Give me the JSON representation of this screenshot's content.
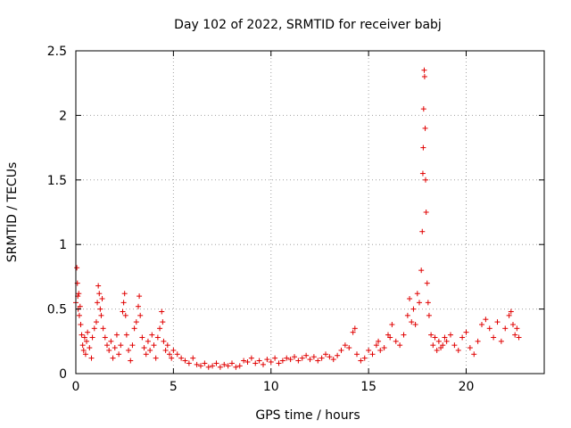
{
  "chart_data": {
    "type": "scatter",
    "title": "Day 102 of 2022, SRMTID for receiver babj",
    "xlabel": "GPS time / hours",
    "ylabel": "SRMTID / TECUs",
    "xlim": [
      0,
      24.0
    ],
    "ylim": [
      0,
      2.5
    ],
    "xticks": [
      0,
      5,
      10,
      15,
      20
    ],
    "xtick_labels": [
      "0",
      "5",
      "10",
      "15",
      "20"
    ],
    "yticks": [
      0,
      0.5,
      1,
      1.5,
      2,
      2.5
    ],
    "ytick_labels": [
      "0",
      "0.5",
      "1",
      "1.5",
      "2",
      "2.5"
    ],
    "grid": true,
    "marker": "plus",
    "series": [
      {
        "name": "SRMTID",
        "color": "#e00000",
        "points": [
          [
            0.0,
            0.55
          ],
          [
            0.05,
            0.82
          ],
          [
            0.08,
            0.7
          ],
          [
            0.1,
            0.6
          ],
          [
            0.12,
            0.5
          ],
          [
            0.15,
            0.62
          ],
          [
            0.18,
            0.45
          ],
          [
            0.22,
            0.52
          ],
          [
            0.25,
            0.38
          ],
          [
            0.3,
            0.3
          ],
          [
            0.35,
            0.22
          ],
          [
            0.4,
            0.18
          ],
          [
            0.45,
            0.28
          ],
          [
            0.5,
            0.15
          ],
          [
            0.55,
            0.25
          ],
          [
            0.6,
            0.32
          ],
          [
            0.7,
            0.2
          ],
          [
            0.8,
            0.12
          ],
          [
            0.85,
            0.28
          ],
          [
            0.95,
            0.35
          ],
          [
            1.05,
            0.4
          ],
          [
            1.1,
            0.55
          ],
          [
            1.15,
            0.68
          ],
          [
            1.2,
            0.62
          ],
          [
            1.25,
            0.5
          ],
          [
            1.3,
            0.45
          ],
          [
            1.35,
            0.58
          ],
          [
            1.4,
            0.35
          ],
          [
            1.5,
            0.28
          ],
          [
            1.6,
            0.22
          ],
          [
            1.7,
            0.18
          ],
          [
            1.8,
            0.25
          ],
          [
            1.9,
            0.12
          ],
          [
            2.0,
            0.2
          ],
          [
            2.1,
            0.3
          ],
          [
            2.2,
            0.15
          ],
          [
            2.3,
            0.22
          ],
          [
            2.4,
            0.48
          ],
          [
            2.45,
            0.55
          ],
          [
            2.5,
            0.62
          ],
          [
            2.55,
            0.45
          ],
          [
            2.6,
            0.3
          ],
          [
            2.7,
            0.18
          ],
          [
            2.8,
            0.1
          ],
          [
            2.9,
            0.22
          ],
          [
            3.0,
            0.35
          ],
          [
            3.1,
            0.4
          ],
          [
            3.2,
            0.52
          ],
          [
            3.25,
            0.6
          ],
          [
            3.3,
            0.45
          ],
          [
            3.4,
            0.28
          ],
          [
            3.5,
            0.2
          ],
          [
            3.6,
            0.15
          ],
          [
            3.7,
            0.25
          ],
          [
            3.8,
            0.18
          ],
          [
            3.9,
            0.3
          ],
          [
            4.0,
            0.22
          ],
          [
            4.1,
            0.12
          ],
          [
            4.2,
            0.28
          ],
          [
            4.3,
            0.35
          ],
          [
            4.4,
            0.48
          ],
          [
            4.45,
            0.4
          ],
          [
            4.5,
            0.25
          ],
          [
            4.6,
            0.18
          ],
          [
            4.7,
            0.22
          ],
          [
            4.8,
            0.15
          ],
          [
            4.9,
            0.12
          ],
          [
            5.0,
            0.18
          ],
          [
            5.2,
            0.15
          ],
          [
            5.4,
            0.12
          ],
          [
            5.6,
            0.1
          ],
          [
            5.8,
            0.08
          ],
          [
            6.0,
            0.12
          ],
          [
            6.2,
            0.07
          ],
          [
            6.4,
            0.06
          ],
          [
            6.6,
            0.08
          ],
          [
            6.8,
            0.05
          ],
          [
            7.0,
            0.06
          ],
          [
            7.2,
            0.08
          ],
          [
            7.4,
            0.05
          ],
          [
            7.6,
            0.07
          ],
          [
            7.8,
            0.06
          ],
          [
            8.0,
            0.08
          ],
          [
            8.2,
            0.05
          ],
          [
            8.4,
            0.06
          ],
          [
            8.6,
            0.1
          ],
          [
            8.8,
            0.09
          ],
          [
            9.0,
            0.12
          ],
          [
            9.2,
            0.08
          ],
          [
            9.4,
            0.1
          ],
          [
            9.6,
            0.07
          ],
          [
            9.8,
            0.11
          ],
          [
            10.0,
            0.09
          ],
          [
            10.2,
            0.12
          ],
          [
            10.4,
            0.08
          ],
          [
            10.6,
            0.1
          ],
          [
            10.8,
            0.12
          ],
          [
            11.0,
            0.11
          ],
          [
            11.2,
            0.13
          ],
          [
            11.4,
            0.1
          ],
          [
            11.6,
            0.12
          ],
          [
            11.8,
            0.14
          ],
          [
            12.0,
            0.11
          ],
          [
            12.2,
            0.13
          ],
          [
            12.4,
            0.1
          ],
          [
            12.6,
            0.12
          ],
          [
            12.8,
            0.15
          ],
          [
            13.0,
            0.13
          ],
          [
            13.2,
            0.11
          ],
          [
            13.4,
            0.14
          ],
          [
            13.6,
            0.18
          ],
          [
            13.8,
            0.22
          ],
          [
            14.0,
            0.2
          ],
          [
            14.2,
            0.32
          ],
          [
            14.3,
            0.35
          ],
          [
            14.4,
            0.15
          ],
          [
            14.6,
            0.1
          ],
          [
            14.8,
            0.12
          ],
          [
            15.0,
            0.18
          ],
          [
            15.2,
            0.15
          ],
          [
            15.4,
            0.22
          ],
          [
            15.5,
            0.25
          ],
          [
            15.6,
            0.18
          ],
          [
            15.8,
            0.2
          ],
          [
            16.0,
            0.3
          ],
          [
            16.1,
            0.28
          ],
          [
            16.2,
            0.38
          ],
          [
            16.4,
            0.25
          ],
          [
            16.6,
            0.22
          ],
          [
            16.8,
            0.3
          ],
          [
            17.0,
            0.45
          ],
          [
            17.1,
            0.58
          ],
          [
            17.2,
            0.4
          ],
          [
            17.3,
            0.5
          ],
          [
            17.4,
            0.38
          ],
          [
            17.5,
            0.62
          ],
          [
            17.6,
            0.55
          ],
          [
            17.7,
            0.8
          ],
          [
            17.75,
            1.1
          ],
          [
            17.78,
            1.55
          ],
          [
            17.8,
            1.75
          ],
          [
            17.82,
            2.05
          ],
          [
            17.85,
            2.35
          ],
          [
            17.87,
            2.3
          ],
          [
            17.9,
            1.9
          ],
          [
            17.92,
            1.5
          ],
          [
            17.95,
            1.25
          ],
          [
            18.0,
            0.7
          ],
          [
            18.05,
            0.55
          ],
          [
            18.1,
            0.45
          ],
          [
            18.2,
            0.3
          ],
          [
            18.3,
            0.22
          ],
          [
            18.4,
            0.28
          ],
          [
            18.5,
            0.18
          ],
          [
            18.6,
            0.25
          ],
          [
            18.7,
            0.2
          ],
          [
            18.8,
            0.22
          ],
          [
            18.9,
            0.28
          ],
          [
            19.0,
            0.25
          ],
          [
            19.2,
            0.3
          ],
          [
            19.4,
            0.22
          ],
          [
            19.6,
            0.18
          ],
          [
            19.8,
            0.28
          ],
          [
            20.0,
            0.32
          ],
          [
            20.2,
            0.2
          ],
          [
            20.4,
            0.15
          ],
          [
            20.6,
            0.25
          ],
          [
            20.8,
            0.38
          ],
          [
            21.0,
            0.42
          ],
          [
            21.2,
            0.35
          ],
          [
            21.4,
            0.28
          ],
          [
            21.6,
            0.4
          ],
          [
            21.8,
            0.25
          ],
          [
            22.0,
            0.35
          ],
          [
            22.2,
            0.45
          ],
          [
            22.3,
            0.48
          ],
          [
            22.4,
            0.38
          ],
          [
            22.5,
            0.3
          ],
          [
            22.6,
            0.35
          ],
          [
            22.7,
            0.28
          ]
        ]
      }
    ]
  }
}
